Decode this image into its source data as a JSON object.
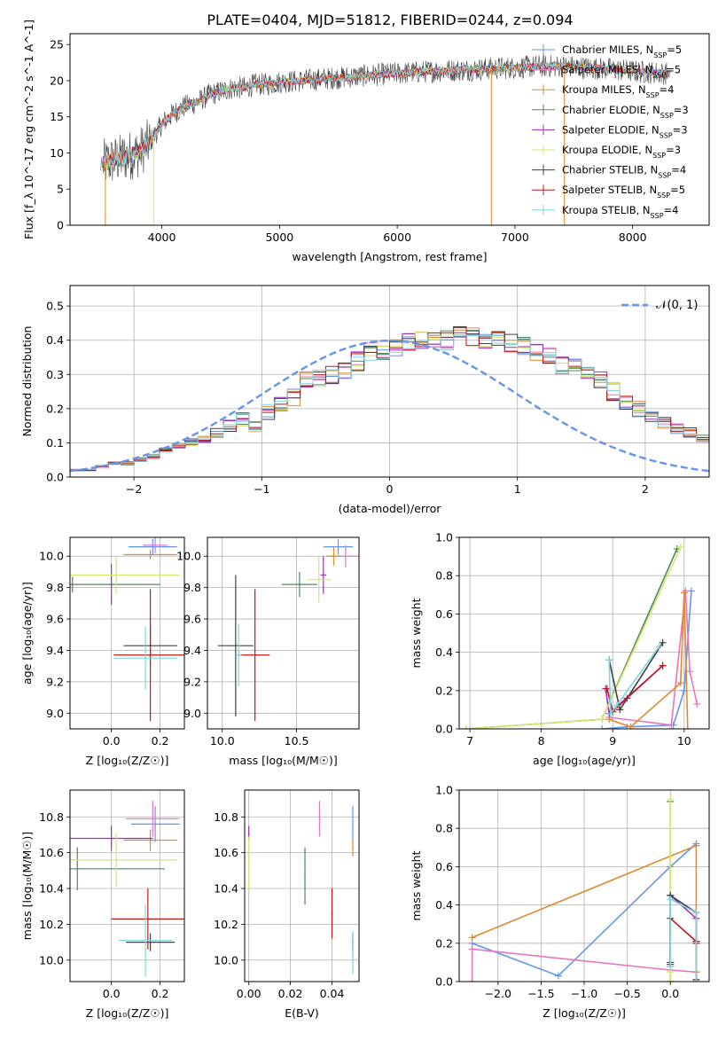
{
  "figure_title": "PLATE=0404, MJD=51812, FIBERID=0244, z=0.094",
  "models": [
    {
      "label": "Chabrier MILES, N",
      "sub": "SSP",
      "suffix": "=5",
      "color": "#6495ed"
    },
    {
      "label": "Salpeter MILES, N",
      "sub": "SSP",
      "suffix": "=5",
      "color": "#e377c2"
    },
    {
      "label": "Kroupa MILES, N",
      "sub": "SSP",
      "suffix": "=4",
      "color": "#e08a30"
    },
    {
      "label": "Chabrier ELODIE, N",
      "sub": "SSP",
      "suffix": "=3",
      "color": "#4a8a5a"
    },
    {
      "label": "Salpeter ELODIE, N",
      "sub": "SSP",
      "suffix": "=3",
      "color": "#9e2fbf"
    },
    {
      "label": "Kroupa ELODIE, N",
      "sub": "SSP",
      "suffix": "=3",
      "color": "#d4e86a"
    },
    {
      "label": "Chabrier STELIB, N",
      "sub": "SSP",
      "suffix": "=4",
      "color": "#404040"
    },
    {
      "label": "Salpeter STELIB, N",
      "sub": "SSP",
      "suffix": "=5",
      "color": "#c01818"
    },
    {
      "label": "Kroupa STELIB, N",
      "sub": "SSP",
      "suffix": "=4",
      "color": "#7fd4e0"
    }
  ],
  "chart_data": [
    {
      "id": "spectrum",
      "type": "line",
      "xlabel": "wavelength [Angstrom, rest frame]",
      "ylabel": "Flux [f_λ 10^-17 erg cm^-2 s^-1 A^-1]",
      "xlim": [
        3220,
        8650
      ],
      "ylim": [
        0,
        26.5
      ],
      "xticks": [
        4000,
        5000,
        6000,
        7000,
        8000
      ],
      "yticks": [
        0,
        5,
        10,
        15,
        20,
        25
      ],
      "legend_position": "top-right",
      "continuum": {
        "x": [
          3500,
          3600,
          3700,
          3800,
          3900,
          4000,
          4100,
          4200,
          4300,
          4400,
          4500,
          4600,
          4700,
          4800,
          4900,
          5000,
          5200,
          5400,
          5600,
          5800,
          6000,
          6200,
          6400,
          6600,
          6800,
          7000,
          7200,
          7400,
          7600,
          7800,
          8000,
          8200,
          8300
        ],
        "y": [
          8.5,
          9,
          9.5,
          10,
          11.5,
          14,
          15.5,
          16.5,
          17,
          18,
          18.5,
          19,
          19,
          19.5,
          19.5,
          19.8,
          20,
          20.3,
          20.5,
          20.8,
          21,
          21.2,
          21.4,
          21.5,
          21.7,
          21.8,
          22,
          22,
          21.8,
          21.6,
          21.3,
          21.1,
          21
        ]
      },
      "dropouts": [
        {
          "x": 3520,
          "y": 0
        },
        {
          "x": 3930,
          "y": 0
        },
        {
          "x": 6800,
          "y": 0
        },
        {
          "x": 7420,
          "y": 0
        }
      ]
    },
    {
      "id": "residuals",
      "type": "line",
      "xlabel": "(data-model)/error",
      "ylabel": "Normed distribution",
      "xlim": [
        -2.5,
        2.5
      ],
      "ylim": [
        0,
        0.56
      ],
      "xticks": [
        -2,
        -1,
        0,
        1,
        2
      ],
      "yticks": [
        0.0,
        0.1,
        0.2,
        0.3,
        0.4,
        0.5
      ],
      "grid": true,
      "reference": {
        "label": "𝒩(0, 1)",
        "mean": 0,
        "sigma": 1,
        "color": "#6495ed"
      },
      "bin_width": 0.1,
      "bin_start": -2.5,
      "histogram": [
        0.02,
        0.02,
        0.03,
        0.04,
        0.04,
        0.05,
        0.06,
        0.08,
        0.09,
        0.1,
        0.11,
        0.13,
        0.15,
        0.17,
        0.15,
        0.19,
        0.21,
        0.23,
        0.28,
        0.29,
        0.3,
        0.31,
        0.34,
        0.37,
        0.37,
        0.38,
        0.39,
        0.4,
        0.41,
        0.4,
        0.42,
        0.41,
        0.4,
        0.4,
        0.39,
        0.38,
        0.37,
        0.35,
        0.33,
        0.32,
        0.3,
        0.28,
        0.25,
        0.22,
        0.2,
        0.18,
        0.16,
        0.14,
        0.13,
        0.11,
        0.1
      ]
    },
    {
      "id": "age-vs-metallicity",
      "type": "scatter",
      "xlabel": "Z [log₁₀(Z/Z☉)]",
      "ylabel": "age  [log₁₀(age/yr)]",
      "xlim": [
        -0.17,
        0.3
      ],
      "ylim": [
        8.9,
        10.12
      ],
      "xticks": [
        0.0,
        0.2
      ],
      "yticks": [
        9.0,
        9.2,
        9.4,
        9.6,
        9.8,
        10.0
      ],
      "grid": true,
      "points": [
        {
          "model": 0,
          "x": 0.17,
          "y": 10.06,
          "xerr": 0.1,
          "yerr": 0.05
        },
        {
          "model": 1,
          "x": 0.18,
          "y": 10.07,
          "xerr": 0.05,
          "yerr": 0.05
        },
        {
          "model": 2,
          "x": 0.16,
          "y": 10.01,
          "xerr": 0.11,
          "yerr": 0.03
        },
        {
          "model": 3,
          "x": -0.16,
          "y": 9.82,
          "xerr": 0.36,
          "yerr": 0.05
        },
        {
          "model": 4,
          "x": 0.0,
          "y": 9.82,
          "xerr": 0.0,
          "yerr": 0.13
        },
        {
          "model": 5,
          "x": 0.02,
          "y": 9.88,
          "xerr": 0.26,
          "yerr": 0.12
        },
        {
          "model": 6,
          "x": 0.16,
          "y": 9.43,
          "xerr": 0.11,
          "yerr": 0.12
        },
        {
          "model": 7,
          "x": 0.16,
          "y": 9.37,
          "xerr": 0.15,
          "yerr": 0.42
        },
        {
          "model": 8,
          "x": 0.14,
          "y": 9.35,
          "xerr": 0.13,
          "yerr": 0.2
        }
      ]
    },
    {
      "id": "age-vs-mass",
      "type": "scatter",
      "xlabel": "mass [log₁₀(M/M☉)]",
      "ylabel": "",
      "xlim": [
        9.9,
        10.92
      ],
      "ylim": [
        8.9,
        10.12
      ],
      "xticks": [
        10.0,
        10.5
      ],
      "yticks": [
        9.0,
        9.2,
        9.4,
        9.6,
        9.8,
        10.0
      ],
      "grid": true,
      "points": [
        {
          "model": 0,
          "x": 10.78,
          "y": 10.06,
          "xerr": 0.1,
          "yerr": 0.05
        },
        {
          "model": 1,
          "x": 10.83,
          "y": 10.0,
          "xerr": 0.1,
          "yerr": 0.07
        },
        {
          "model": 2,
          "x": 10.75,
          "y": 10.0,
          "xerr": 0.05,
          "yerr": 0.06
        },
        {
          "model": 3,
          "x": 10.52,
          "y": 9.82,
          "xerr": 0.12,
          "yerr": 0.08
        },
        {
          "model": 4,
          "x": 10.68,
          "y": 9.88,
          "xerr": 0.02,
          "yerr": 0.12
        },
        {
          "model": 5,
          "x": 10.65,
          "y": 9.85,
          "xerr": 0.08,
          "yerr": 0.15
        },
        {
          "model": 6,
          "x": 10.09,
          "y": 9.43,
          "xerr": 0.12,
          "yerr": 0.45
        },
        {
          "model": 7,
          "x": 10.22,
          "y": 9.37,
          "xerr": 0.1,
          "yerr": 0.42
        },
        {
          "model": 8,
          "x": 10.11,
          "y": 9.37,
          "xerr": 0.02,
          "yerr": 0.2
        }
      ]
    },
    {
      "id": "weight-vs-age",
      "type": "line",
      "xlabel": "age  [log₁₀(age/yr)]",
      "ylabel": "mass weight",
      "xlim": [
        6.85,
        10.35
      ],
      "ylim": [
        0,
        1.0
      ],
      "xticks": [
        7,
        8,
        9,
        10
      ],
      "yticks": [
        0.0,
        0.2,
        0.4,
        0.6,
        0.8,
        1.0
      ],
      "grid": true,
      "series": [
        {
          "model": 0,
          "x": [
            8.85,
            9.2,
            9.85,
            10.0,
            10.1
          ],
          "y": [
            0.0,
            0.01,
            0.02,
            0.2,
            0.72
          ]
        },
        {
          "model": 1,
          "x": [
            8.95,
            9.82,
            10.02,
            10.08,
            10.18
          ],
          "y": [
            0.06,
            0.02,
            0.72,
            0.3,
            0.13
          ]
        },
        {
          "model": 2,
          "x": [
            8.95,
            9.25,
            9.95,
            10.0,
            10.05
          ],
          "y": [
            0.05,
            0.01,
            0.24,
            0.71,
            0.0
          ]
        },
        {
          "model": 3,
          "x": [
            6.95,
            8.85,
            9.9
          ],
          "y": [
            0.0,
            0.05,
            0.94
          ]
        },
        {
          "model": 4,
          "x": [
            8.9,
            8.95,
            9.7
          ],
          "y": [
            0.21,
            0.08,
            0.33
          ]
        },
        {
          "model": 5,
          "x": [
            6.95,
            8.85,
            9.95
          ],
          "y": [
            0.0,
            0.05,
            0.95
          ]
        },
        {
          "model": 6,
          "x": [
            8.95,
            9.1,
            9.7
          ],
          "y": [
            0.36,
            0.1,
            0.45
          ]
        },
        {
          "model": 7,
          "x": [
            8.92,
            9.0,
            9.2,
            9.7
          ],
          "y": [
            0.21,
            0.09,
            0.16,
            0.33
          ]
        },
        {
          "model": 8,
          "x": [
            8.95,
            8.97,
            9.05,
            9.65
          ],
          "y": [
            0.36,
            0.08,
            0.12,
            0.43
          ]
        }
      ]
    },
    {
      "id": "mass-vs-metallicity",
      "type": "scatter",
      "xlabel": "Z [log₁₀(Z/Z☉)]",
      "ylabel": "mass [log₁₀(M/M☉)]",
      "xlim": [
        -0.17,
        0.3
      ],
      "ylim": [
        9.88,
        10.95
      ],
      "xticks": [
        0.0,
        0.2
      ],
      "yticks": [
        10.0,
        10.2,
        10.4,
        10.6,
        10.8
      ],
      "grid": true,
      "points": [
        {
          "model": 0,
          "x": 0.18,
          "y": 10.76,
          "xerr": 0.1,
          "yerr": 0.1
        },
        {
          "model": 1,
          "x": 0.17,
          "y": 10.79,
          "xerr": 0.11,
          "yerr": 0.1
        },
        {
          "model": 2,
          "x": 0.16,
          "y": 10.67,
          "xerr": 0.11,
          "yerr": 0.06
        },
        {
          "model": 3,
          "x": -0.14,
          "y": 10.51,
          "xerr": 0.36,
          "yerr": 0.12
        },
        {
          "model": 4,
          "x": 0.0,
          "y": 10.68,
          "xerr": 0.17,
          "yerr": 0.07
        },
        {
          "model": 5,
          "x": 0.02,
          "y": 10.56,
          "xerr": 0.25,
          "yerr": 0.15
        },
        {
          "model": 6,
          "x": 0.16,
          "y": 10.1,
          "xerr": 0.1,
          "yerr": 0.05
        },
        {
          "model": 7,
          "x": 0.15,
          "y": 10.23,
          "xerr": 0.15,
          "yerr": 0.17
        },
        {
          "model": 8,
          "x": 0.14,
          "y": 10.11,
          "xerr": 0.11,
          "yerr": 0.2
        }
      ]
    },
    {
      "id": "mass-vs-extinction",
      "type": "scatter",
      "xlabel": "E(B-V)",
      "ylabel": "",
      "xlim": [
        -0.002,
        0.053
      ],
      "ylim": [
        9.88,
        10.95
      ],
      "xticks": [
        0.0,
        0.02,
        0.04
      ],
      "yticks": [
        10.0,
        10.2,
        10.4,
        10.6,
        10.8
      ],
      "grid": true,
      "points": [
        {
          "model": 0,
          "x": 0.05,
          "y": 10.76,
          "xerr": 0,
          "yerr": 0.1
        },
        {
          "model": 1,
          "x": 0.034,
          "y": 10.79,
          "xerr": 0,
          "yerr": 0.1
        },
        {
          "model": 2,
          "x": 0.05,
          "y": 10.63,
          "xerr": 0,
          "yerr": 0.05
        },
        {
          "model": 3,
          "x": 0.027,
          "y": 10.47,
          "xerr": 0,
          "yerr": 0.16
        },
        {
          "model": 4,
          "x": 0.0,
          "y": 10.71,
          "xerr": 0,
          "yerr": 0.04
        },
        {
          "model": 5,
          "x": 0.0,
          "y": 10.54,
          "xerr": 0,
          "yerr": 0.15
        },
        {
          "model": 6,
          "x": 0.05,
          "y": 10.1,
          "xerr": 0,
          "yerr": 0.05
        },
        {
          "model": 7,
          "x": 0.04,
          "y": 10.26,
          "xerr": 0,
          "yerr": 0.14
        },
        {
          "model": 8,
          "x": 0.05,
          "y": 10.04,
          "xerr": 0,
          "yerr": 0.12
        }
      ]
    },
    {
      "id": "weight-vs-metallicity",
      "type": "line",
      "xlabel": "Z [log₁₀(Z/Z☉)]",
      "ylabel": "mass weight",
      "xlim": [
        -2.45,
        0.45
      ],
      "ylim": [
        0,
        1.0
      ],
      "xticks": [
        -2.0,
        -1.5,
        -1.0,
        -0.5,
        0.0
      ],
      "yticks": [
        0.0,
        0.2,
        0.4,
        0.6,
        0.8,
        1.0
      ],
      "grid": true,
      "series": [
        {
          "model": 0,
          "x": [
            -2.3,
            -1.3,
            0.0,
            0.3
          ],
          "y": [
            0.2,
            0.03,
            0.6,
            0.72
          ]
        },
        {
          "model": 1,
          "x": [
            -2.3,
            -2.3,
            0.0,
            0.3,
            0.3
          ],
          "y": [
            0.0,
            0.17,
            0.06,
            0.05,
            0.0
          ]
        },
        {
          "model": 2,
          "x": [
            -2.3,
            0.3,
            0.3,
            0.3
          ],
          "y": [
            0.23,
            0.71,
            0.01,
            0.05
          ]
        },
        {
          "model": 3,
          "x": [
            0.0,
            0.0,
            0.0
          ],
          "y": [
            0.0,
            0.94,
            0.0
          ]
        },
        {
          "model": 4,
          "x": [
            0.0,
            0.0,
            0.3,
            0.3
          ],
          "y": [
            0.08,
            0.45,
            0.33,
            0.21
          ]
        },
        {
          "model": 5,
          "x": [
            0.0,
            0.0,
            0.0
          ],
          "y": [
            0.0,
            0.95,
            0.05
          ]
        },
        {
          "model": 6,
          "x": [
            0.0,
            0.0,
            0.3,
            0.3
          ],
          "y": [
            0.1,
            0.45,
            0.36,
            0.01
          ]
        },
        {
          "model": 7,
          "x": [
            0.0,
            0.0,
            0.3,
            0.3
          ],
          "y": [
            0.09,
            0.33,
            0.21,
            0.2
          ]
        },
        {
          "model": 8,
          "x": [
            0.0,
            0.0,
            0.3,
            0.3
          ],
          "y": [
            0.08,
            0.43,
            0.36,
            0.0
          ]
        }
      ]
    }
  ]
}
